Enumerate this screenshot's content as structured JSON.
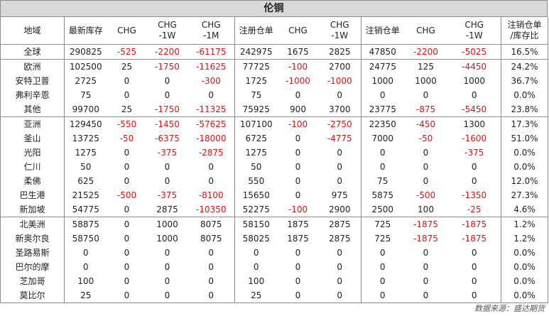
{
  "title": "伦铜",
  "columns": [
    "地域",
    "最新库存",
    "CHG",
    "CHG\n-1W",
    "CHG\n-1M",
    "注册仓单",
    "CHG",
    "CHG\n-1W",
    "注销仓单",
    "CHG",
    "CHG\n-1W",
    "注销仓单\n/库存比"
  ],
  "rows": [
    {
      "name": "全球",
      "level": "region",
      "values": [
        "290825",
        "-525",
        "-2200",
        "-61175",
        "242975",
        "1675",
        "2825",
        "47850",
        "-2200",
        "-5025",
        "16.5%"
      ]
    },
    {
      "name": "欧洲",
      "level": "region",
      "values": [
        "102500",
        "25",
        "-1750",
        "-11625",
        "77725",
        "-100",
        "2700",
        "24775",
        "125",
        "-4450",
        "24.2%"
      ]
    },
    {
      "name": "安特卫普",
      "level": "sub",
      "values": [
        "2725",
        "0",
        "0",
        "-300",
        "1725",
        "-1000",
        "-1000",
        "1000",
        "1000",
        "1000",
        "36.7%"
      ]
    },
    {
      "name": "弗利辛恩",
      "level": "sub",
      "values": [
        "75",
        "0",
        "0",
        "0",
        "75",
        "0",
        "0",
        "0",
        "0",
        "0",
        "0.0%"
      ]
    },
    {
      "name": "其他",
      "level": "sub",
      "values": [
        "99700",
        "25",
        "-1750",
        "-11325",
        "75925",
        "900",
        "3700",
        "23775",
        "-875",
        "-5450",
        "23.8%"
      ]
    },
    {
      "name": "亚洲",
      "level": "region",
      "values": [
        "129450",
        "-550",
        "-1450",
        "-57625",
        "107100",
        "-100",
        "-2750",
        "22350",
        "-450",
        "1300",
        "17.3%"
      ]
    },
    {
      "name": "釜山",
      "level": "sub",
      "values": [
        "13725",
        "-50",
        "-6375",
        "-18000",
        "6725",
        "0",
        "-4775",
        "7000",
        "-50",
        "-1600",
        "51.0%"
      ]
    },
    {
      "name": "光阳",
      "level": "sub",
      "values": [
        "1275",
        "0",
        "-375",
        "-2875",
        "1275",
        "0",
        "0",
        "0",
        "0",
        "-375",
        "0.0%"
      ]
    },
    {
      "name": "仁川",
      "level": "sub",
      "values": [
        "50",
        "0",
        "0",
        "0",
        "50",
        "0",
        "0",
        "0",
        "0",
        "0",
        "0.0%"
      ]
    },
    {
      "name": "柔佛",
      "level": "sub",
      "values": [
        "625",
        "0",
        "0",
        "0",
        "550",
        "0",
        "0",
        "75",
        "0",
        "0",
        "12.0%"
      ]
    },
    {
      "name": "巴生港",
      "level": "sub",
      "values": [
        "21525",
        "-500",
        "-375",
        "-8100",
        "15650",
        "0",
        "975",
        "5875",
        "-500",
        "-1350",
        "27.3%"
      ]
    },
    {
      "name": "新加坡",
      "level": "sub",
      "values": [
        "54775",
        "0",
        "2875",
        "-10350",
        "52275",
        "-100",
        "2900",
        "2500",
        "100",
        "-25",
        "4.6%"
      ]
    },
    {
      "name": "北美洲",
      "level": "region",
      "values": [
        "58875",
        "0",
        "1000",
        "8075",
        "58150",
        "1875",
        "2875",
        "725",
        "-1875",
        "-1875",
        "1.2%"
      ]
    },
    {
      "name": "新奥尔良",
      "level": "sub",
      "values": [
        "58750",
        "0",
        "1000",
        "8075",
        "58025",
        "1875",
        "2875",
        "725",
        "-1875",
        "-1875",
        "1.2%"
      ]
    },
    {
      "name": "圣路易斯",
      "level": "sub",
      "values": [
        "0",
        "0",
        "0",
        "0",
        "0",
        "0",
        "0",
        "0",
        "0",
        "0",
        "0.0%"
      ]
    },
    {
      "name": "巴尔的摩",
      "level": "sub",
      "values": [
        "0",
        "0",
        "0",
        "0",
        "0",
        "0",
        "0",
        "0",
        "0",
        "0",
        "0.0%"
      ]
    },
    {
      "name": "芝加哥",
      "level": "sub",
      "values": [
        "100",
        "0",
        "0",
        "0",
        "100",
        "0",
        "0",
        "0",
        "0",
        "0",
        "0.0%"
      ]
    },
    {
      "name": "莫比尔",
      "level": "sub",
      "values": [
        "25",
        "0",
        "0",
        "0",
        "25",
        "0",
        "0",
        "0",
        "0",
        "0",
        "0.0%"
      ]
    }
  ],
  "source": "数据来源：盛达期货",
  "colors": {
    "negative": "#e01010",
    "header_bg": "#d9d9d9",
    "grid": "#8c8c8c"
  }
}
